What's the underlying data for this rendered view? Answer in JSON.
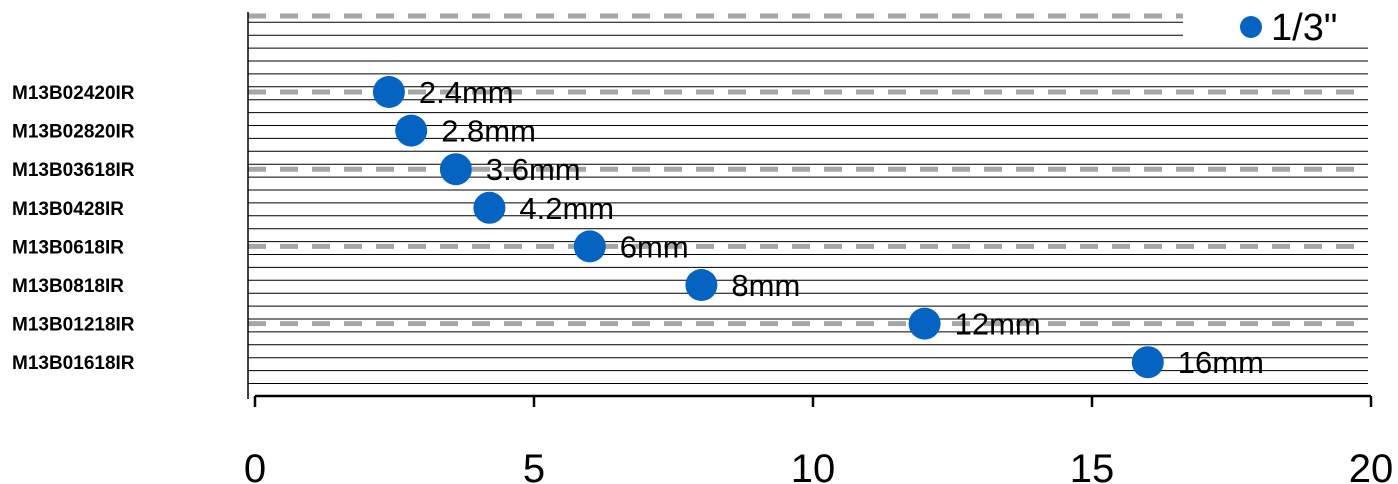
{
  "chart_data": {
    "type": "scatter",
    "title": "",
    "xlabel": "",
    "ylabel": "",
    "xlim": [
      0,
      20
    ],
    "x_ticks": [
      0,
      5,
      10,
      15,
      20
    ],
    "categories": [
      "M13B02420IR",
      "M13B02820IR",
      "M13B03618IR",
      "M13B0428IR",
      "M13B0618IR",
      "M13B0818IR",
      "M13B01218IR",
      "M13B01618IR"
    ],
    "series": [
      {
        "name": "",
        "color": "#0563c1",
        "values": [
          2.4,
          2.8,
          3.6,
          4.2,
          6,
          8,
          12,
          16
        ],
        "labels": [
          "2.4mm",
          "2.8mm",
          "3.6mm",
          "4.2mm",
          "6mm",
          "8mm",
          "12mm",
          "16mm"
        ]
      }
    ],
    "legend": {
      "label": "1/3\"",
      "position": "top-right"
    },
    "grid": true
  }
}
